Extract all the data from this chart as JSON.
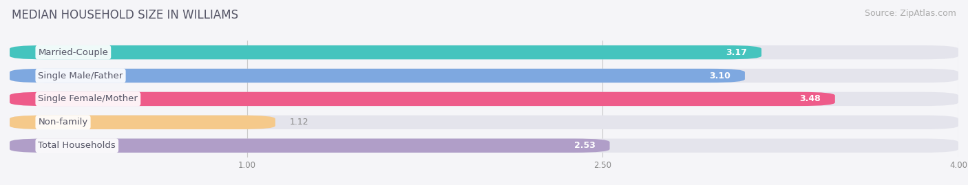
{
  "title": "MEDIAN HOUSEHOLD SIZE IN WILLIAMS",
  "source": "Source: ZipAtlas.com",
  "categories": [
    "Married-Couple",
    "Single Male/Father",
    "Single Female/Mother",
    "Non-family",
    "Total Households"
  ],
  "values": [
    3.17,
    3.1,
    3.48,
    1.12,
    2.53
  ],
  "bar_colors": [
    "#45c4be",
    "#7ea8e0",
    "#ee5c8a",
    "#f5c98a",
    "#b09ec8"
  ],
  "xlim": [
    0,
    4.0
  ],
  "xticks": [
    1.0,
    2.5,
    4.0
  ],
  "background_color": "#f5f5f8",
  "bar_bg_color": "#e4e4ec",
  "label_fontsize": 9.5,
  "value_fontsize": 9,
  "title_fontsize": 12,
  "source_fontsize": 9,
  "title_color": "#555566",
  "label_text_color": "#555566",
  "value_color_inside": "#ffffff",
  "value_color_outside": "#888888"
}
